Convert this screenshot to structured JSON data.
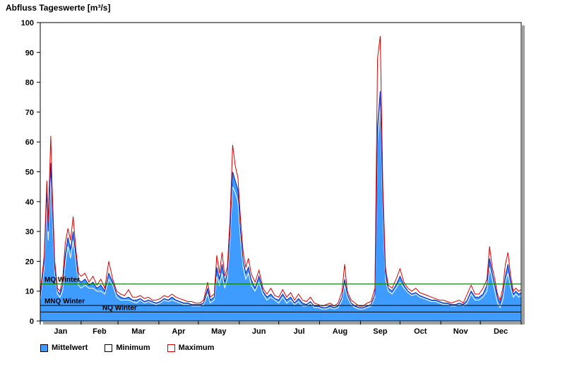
{
  "title": "Abfluss Tageswerte [m³/s]",
  "legend": [
    {
      "label": "Mittelwert",
      "fill": "#3e9bff",
      "border": "#000000"
    },
    {
      "label": "Minimum",
      "fill": "#ffffff",
      "border": "#000000"
    },
    {
      "label": "Maximum",
      "fill": "#ffffff",
      "border": "#dd0000"
    }
  ],
  "chart_data": {
    "type": "area",
    "title": "Abfluss Tageswerte [m³/s]",
    "xlabel": "",
    "ylabel": "",
    "ylim": [
      0,
      100
    ],
    "yticks": [
      0,
      10,
      20,
      30,
      40,
      50,
      60,
      70,
      80,
      90,
      100
    ],
    "x_unit": "day_of_year",
    "months": [
      "Jan",
      "Feb",
      "Mar",
      "Apr",
      "May",
      "Jun",
      "Jul",
      "Aug",
      "Sep",
      "Oct",
      "Nov",
      "Dec"
    ],
    "month_start_days": [
      0,
      31,
      59,
      90,
      120,
      151,
      181,
      212,
      243,
      273,
      304,
      334,
      365
    ],
    "grid": false,
    "legend_position": "bottom",
    "colors": {
      "mean_fill": "#3e9bff",
      "mean_stroke": "#0022bb",
      "min_line": "#ffffff",
      "max_line": "#dd0000",
      "frame": "#000000",
      "shadow": "#a0a0a0"
    },
    "reference_lines": [
      {
        "label": "MQ Winter",
        "value": 12.4,
        "color": "#007700"
      },
      {
        "label": "MNQ Winter",
        "value": 5.2,
        "color": "#000000"
      },
      {
        "label": "NQ Winter",
        "value": 3.0,
        "color": "#000000"
      }
    ],
    "series_names": [
      "Mittelwert",
      "Minimum",
      "Maximum"
    ],
    "columns": [
      "day",
      "mittelwert",
      "minimum",
      "maximum"
    ],
    "points": [
      [
        0,
        8,
        7,
        9
      ],
      [
        3,
        20,
        18,
        22
      ],
      [
        5,
        44,
        40,
        47
      ],
      [
        6,
        30,
        27,
        33
      ],
      [
        8,
        53,
        48,
        62
      ],
      [
        9,
        40,
        36,
        45
      ],
      [
        11,
        18,
        16,
        20
      ],
      [
        13,
        10,
        9,
        11
      ],
      [
        15,
        9,
        8,
        10
      ],
      [
        17,
        12,
        10,
        14
      ],
      [
        19,
        22,
        19,
        26
      ],
      [
        21,
        28,
        25,
        31
      ],
      [
        23,
        24,
        21,
        27
      ],
      [
        25,
        30,
        27,
        35
      ],
      [
        27,
        22,
        20,
        24
      ],
      [
        29,
        14,
        12,
        16
      ],
      [
        31,
        13,
        11,
        15
      ],
      [
        34,
        14,
        12,
        16
      ],
      [
        37,
        12,
        11,
        13
      ],
      [
        40,
        13,
        11,
        15
      ],
      [
        43,
        11,
        10,
        12
      ],
      [
        46,
        12,
        10,
        14
      ],
      [
        49,
        10,
        9,
        11
      ],
      [
        52,
        16,
        14,
        20
      ],
      [
        55,
        13,
        12,
        14
      ],
      [
        58,
        9,
        8,
        10
      ],
      [
        61,
        8,
        7,
        9
      ],
      [
        64,
        7.5,
        7,
        8.5
      ],
      [
        67,
        8,
        7,
        10.5
      ],
      [
        70,
        7,
        6.5,
        8
      ],
      [
        73,
        7,
        6,
        8
      ],
      [
        76,
        7.5,
        7,
        8.5
      ],
      [
        79,
        6.5,
        6,
        7.5
      ],
      [
        82,
        7,
        6.5,
        8
      ],
      [
        85,
        6.5,
        6,
        7
      ],
      [
        88,
        6,
        5.5,
        7
      ],
      [
        91,
        6.5,
        6,
        7.5
      ],
      [
        94,
        7.5,
        7,
        8.5
      ],
      [
        97,
        7,
        6.5,
        8
      ],
      [
        100,
        8,
        7,
        9
      ],
      [
        103,
        7,
        6.5,
        8
      ],
      [
        106,
        6.5,
        6,
        7.5
      ],
      [
        109,
        6,
        5.5,
        7
      ],
      [
        112,
        6,
        5.5,
        6.5
      ],
      [
        115,
        5.5,
        5,
        6.5
      ],
      [
        118,
        5.5,
        5,
        6
      ],
      [
        121,
        5.5,
        5,
        6
      ],
      [
        124,
        6,
        5.5,
        7
      ],
      [
        127,
        11,
        9,
        13
      ],
      [
        129,
        7,
        6,
        8
      ],
      [
        132,
        8,
        7,
        9
      ],
      [
        134,
        18,
        15,
        22
      ],
      [
        136,
        14,
        12,
        16
      ],
      [
        138,
        19,
        16,
        23
      ],
      [
        140,
        13,
        11,
        15
      ],
      [
        142,
        16,
        14,
        18
      ],
      [
        144,
        30,
        27,
        34
      ],
      [
        146,
        50,
        45,
        59
      ],
      [
        148,
        47,
        43,
        52
      ],
      [
        150,
        44,
        40,
        48
      ],
      [
        152,
        30,
        27,
        34
      ],
      [
        154,
        20,
        18,
        23
      ],
      [
        156,
        16,
        14,
        18
      ],
      [
        158,
        18,
        16,
        21
      ],
      [
        160,
        14,
        12,
        16
      ],
      [
        163,
        11,
        10,
        13
      ],
      [
        166,
        15,
        13,
        17
      ],
      [
        169,
        10,
        9,
        11
      ],
      [
        172,
        8,
        7,
        9
      ],
      [
        175,
        9,
        8,
        11
      ],
      [
        178,
        7.5,
        7,
        8.5
      ],
      [
        181,
        7,
        6,
        8
      ],
      [
        184,
        9,
        8,
        10.5
      ],
      [
        187,
        7,
        6,
        8
      ],
      [
        190,
        8,
        7,
        9.5
      ],
      [
        193,
        6,
        5.5,
        7
      ],
      [
        196,
        7.5,
        6.5,
        9
      ],
      [
        199,
        6,
        5,
        7
      ],
      [
        202,
        5.5,
        5,
        6.5
      ],
      [
        205,
        6.5,
        6,
        8
      ],
      [
        208,
        5,
        4.5,
        6
      ],
      [
        211,
        5,
        4.5,
        5.5
      ],
      [
        214,
        4.5,
        4,
        5
      ],
      [
        217,
        4.5,
        4,
        5.5
      ],
      [
        220,
        5,
        4.5,
        6
      ],
      [
        223,
        4.5,
        4,
        5
      ],
      [
        226,
        5,
        4.5,
        6
      ],
      [
        229,
        8,
        7,
        10
      ],
      [
        231,
        14,
        12,
        19
      ],
      [
        233,
        9,
        8,
        10
      ],
      [
        236,
        6,
        5.5,
        7
      ],
      [
        239,
        5,
        4.5,
        6
      ],
      [
        242,
        4.5,
        4,
        5
      ],
      [
        245,
        4.5,
        4,
        5
      ],
      [
        248,
        5,
        4.5,
        6
      ],
      [
        251,
        5.5,
        5,
        6.5
      ],
      [
        254,
        9,
        8,
        11
      ],
      [
        256,
        65,
        60,
        88
      ],
      [
        258,
        77,
        72,
        95.5
      ],
      [
        260,
        40,
        36,
        45
      ],
      [
        262,
        16,
        14,
        18
      ],
      [
        264,
        11,
        10,
        12
      ],
      [
        267,
        10,
        9,
        11
      ],
      [
        270,
        12,
        11,
        14
      ],
      [
        273,
        15,
        13,
        17.5
      ],
      [
        276,
        12,
        11,
        13
      ],
      [
        279,
        10,
        9.5,
        11
      ],
      [
        282,
        9,
        8.5,
        10
      ],
      [
        285,
        9.5,
        9,
        11
      ],
      [
        288,
        8.5,
        8,
        9.5
      ],
      [
        291,
        8,
        7.5,
        9
      ],
      [
        294,
        7.5,
        7,
        8.5
      ],
      [
        297,
        7,
        6.5,
        8
      ],
      [
        300,
        7,
        6.5,
        7.5
      ],
      [
        303,
        6.5,
        6,
        7
      ],
      [
        306,
        6,
        5.5,
        7
      ],
      [
        309,
        6,
        5.5,
        6.5
      ],
      [
        312,
        5.5,
        5,
        6
      ],
      [
        315,
        5.5,
        5,
        6.5
      ],
      [
        318,
        6,
        5.5,
        7
      ],
      [
        321,
        5.5,
        5,
        6
      ],
      [
        324,
        7,
        6,
        9
      ],
      [
        327,
        10,
        9,
        12
      ],
      [
        330,
        8,
        7,
        9
      ],
      [
        333,
        8,
        7,
        9
      ],
      [
        336,
        9,
        8,
        11
      ],
      [
        339,
        12,
        10,
        14
      ],
      [
        341,
        21,
        18,
        25
      ],
      [
        343,
        16,
        14,
        18
      ],
      [
        345,
        12,
        10,
        14
      ],
      [
        347,
        8,
        6,
        9
      ],
      [
        349,
        6,
        4.5,
        7
      ],
      [
        351,
        9,
        7,
        11
      ],
      [
        353,
        15,
        13,
        19
      ],
      [
        355,
        19,
        16,
        23
      ],
      [
        357,
        13,
        11,
        15
      ],
      [
        359,
        9,
        8,
        10
      ],
      [
        361,
        10,
        9,
        11
      ],
      [
        363,
        9,
        8,
        10
      ],
      [
        365,
        9.5,
        8.5,
        10.5
      ]
    ]
  }
}
